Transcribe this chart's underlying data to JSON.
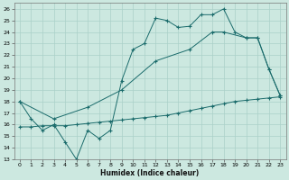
{
  "xlabel": "Humidex (Indice chaleur)",
  "bg_color": "#cce8e0",
  "line_color": "#1a6b6b",
  "grid_color": "#aad0c8",
  "xlim": [
    -0.5,
    23.5
  ],
  "ylim": [
    13,
    26.5
  ],
  "yticks": [
    13,
    14,
    15,
    16,
    17,
    18,
    19,
    20,
    21,
    22,
    23,
    24,
    25,
    26
  ],
  "xticks": [
    0,
    1,
    2,
    3,
    4,
    5,
    6,
    7,
    8,
    9,
    10,
    11,
    12,
    13,
    14,
    15,
    16,
    17,
    18,
    19,
    20,
    21,
    22,
    23
  ],
  "line1_x": [
    0,
    1,
    2,
    3,
    4,
    5,
    6,
    7,
    8,
    9,
    10,
    11,
    12,
    13,
    14,
    15,
    16,
    17,
    18,
    19,
    20,
    21,
    22,
    23
  ],
  "line1_y": [
    18.0,
    16.5,
    15.5,
    16.0,
    14.5,
    13.0,
    15.5,
    14.8,
    15.5,
    19.8,
    22.5,
    23.0,
    25.2,
    25.0,
    24.4,
    24.5,
    25.5,
    25.5,
    26.0,
    24.0,
    23.5,
    23.5,
    20.8,
    18.5
  ],
  "line2_x": [
    0,
    3,
    6,
    9,
    12,
    15,
    17,
    18,
    20,
    21,
    22,
    23
  ],
  "line2_y": [
    18.0,
    16.5,
    17.5,
    19.0,
    21.5,
    22.5,
    24.0,
    24.0,
    23.5,
    23.5,
    20.8,
    18.5
  ],
  "line3_x": [
    0,
    1,
    2,
    3,
    4,
    5,
    6,
    7,
    8,
    9,
    10,
    11,
    12,
    13,
    14,
    15,
    16,
    17,
    18,
    19,
    20,
    21,
    22,
    23
  ],
  "line3_y": [
    15.8,
    15.8,
    15.9,
    15.9,
    15.9,
    16.0,
    16.1,
    16.2,
    16.3,
    16.4,
    16.5,
    16.6,
    16.7,
    16.8,
    17.0,
    17.2,
    17.4,
    17.6,
    17.8,
    18.0,
    18.1,
    18.2,
    18.3,
    18.4
  ]
}
